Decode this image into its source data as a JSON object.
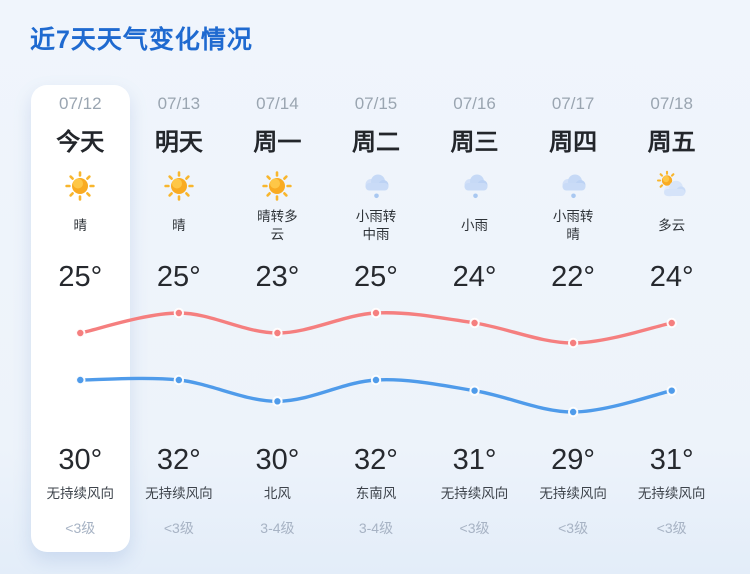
{
  "title": "近7天天气变化情况",
  "accent_color": "#1f6ad0",
  "days": [
    {
      "date": "07/12",
      "label": "今天",
      "icon": "sunny",
      "condition": "晴",
      "temp_top": "25°",
      "temp_bottom": "30°",
      "wind": "无持续风向",
      "wind_level": "<3级",
      "today": true
    },
    {
      "date": "07/13",
      "label": "明天",
      "icon": "sunny",
      "condition": "晴",
      "temp_top": "25°",
      "temp_bottom": "32°",
      "wind": "无持续风向",
      "wind_level": "<3级",
      "today": false
    },
    {
      "date": "07/14",
      "label": "周一",
      "icon": "sunny",
      "condition": "晴转多\n云",
      "temp_top": "23°",
      "temp_bottom": "30°",
      "wind": "北风",
      "wind_level": "3-4级",
      "today": false
    },
    {
      "date": "07/15",
      "label": "周二",
      "icon": "rain",
      "condition": "小雨转\n中雨",
      "temp_top": "25°",
      "temp_bottom": "32°",
      "wind": "东南风",
      "wind_level": "3-4级",
      "today": false
    },
    {
      "date": "07/16",
      "label": "周三",
      "icon": "rain",
      "condition": "小雨",
      "temp_top": "24°",
      "temp_bottom": "31°",
      "wind": "无持续风向",
      "wind_level": "<3级",
      "today": false
    },
    {
      "date": "07/17",
      "label": "周四",
      "icon": "rain",
      "condition": "小雨转\n晴",
      "temp_top": "22°",
      "temp_bottom": "29°",
      "wind": "无持续风向",
      "wind_level": "<3级",
      "today": false
    },
    {
      "date": "07/18",
      "label": "周五",
      "icon": "partly-cloudy",
      "condition": "多云",
      "temp_top": "24°",
      "temp_bottom": "31°",
      "wind": "无持续风向",
      "wind_level": "<3级",
      "today": false
    }
  ],
  "chart_data": {
    "type": "line",
    "categories": [
      "07/12",
      "07/13",
      "07/14",
      "07/15",
      "07/16",
      "07/17",
      "07/18"
    ],
    "series": [
      {
        "name": "bottom_row_temp_red",
        "color": "#f57f7f",
        "values": [
          30,
          32,
          30,
          32,
          31,
          29,
          31
        ]
      },
      {
        "name": "top_row_temp_blue",
        "color": "#4f9bea",
        "values": [
          25,
          25,
          23,
          25,
          24,
          22,
          24
        ]
      }
    ],
    "title": "",
    "xlabel": "",
    "ylabel": "",
    "grid": false,
    "legend": "none",
    "smooth": true
  }
}
